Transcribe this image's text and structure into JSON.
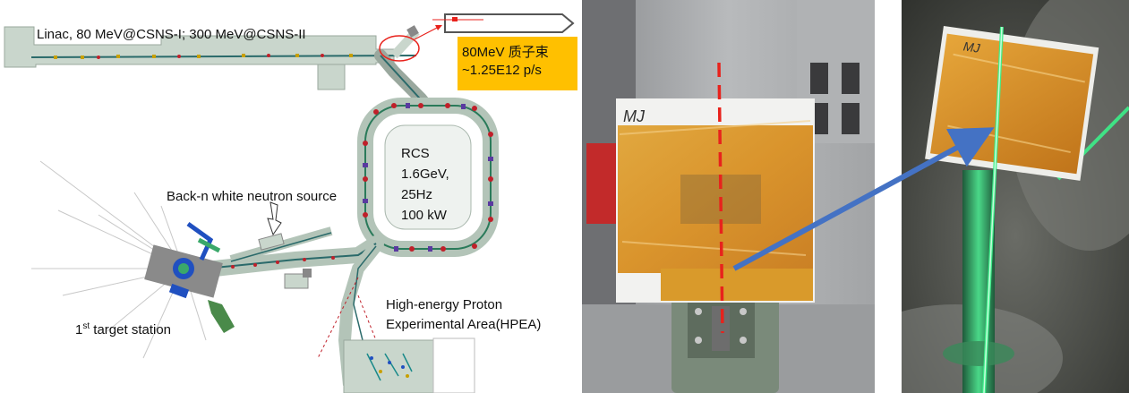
{
  "diagram": {
    "linac_label": "Linac, 80 MeV@CSNS-I; 300 MeV@CSNS-II",
    "beam_box": {
      "line1": "80MeV 质子束",
      "line2": "~1.25E12 p/s",
      "color": "#ffc000"
    },
    "rcs": {
      "line1": "RCS",
      "line2": "1.6GeV,",
      "line3": "25Hz",
      "line4": "100 kW"
    },
    "backn_label": "Back-n white neutron source",
    "target_station": {
      "prefix": "1",
      "superscript": "st",
      "rest": " target station"
    },
    "hpea": {
      "line1": "High-energy Proton",
      "line2": "Experimental Area(HPEA)"
    }
  },
  "photos": {
    "sample_marking": "MJ",
    "beam_line_color": "#e8221c",
    "arrow_color": "#4472c4",
    "laser_color": "#3cf08a"
  }
}
